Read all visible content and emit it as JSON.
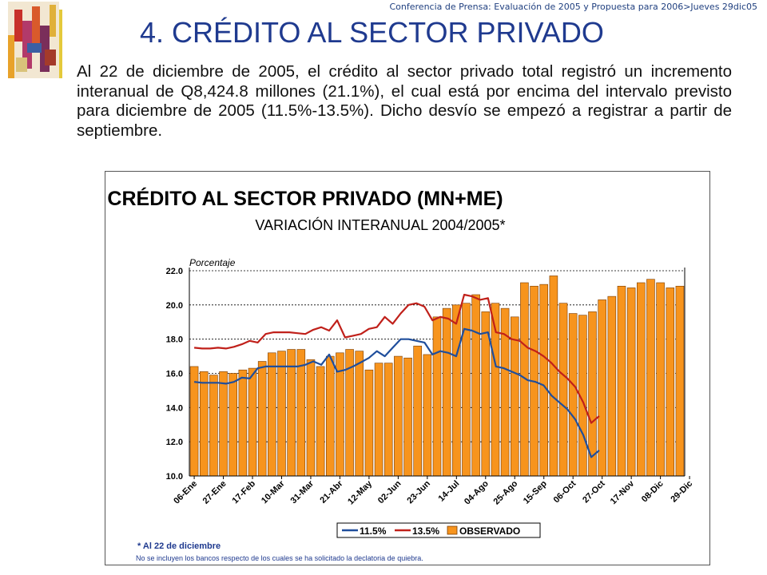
{
  "header": {
    "presentation_note": "Conferencia de Prensa: Evaluación de 2005 y Propuesta para 2006>Jueves 29dic05"
  },
  "slide": {
    "title": "4. CRÉDITO AL SECTOR PRIVADO",
    "body": "Al 22 de diciembre de 2005, el crédito al sector privado total registró un incremento interanual de Q8,424.8 millones (21.1%), el cual está por encima del intervalo previsto para diciembre de 2005 (11.5%-13.5%). Dicho desvío se empezó a registrar a partir de septiembre."
  },
  "colors": {
    "bar_fill": "#f7941d",
    "bar_stroke": "#7a3b00",
    "line_low": "#1f4e9c",
    "line_high": "#c0201a",
    "title_text": "#1f3a8f",
    "footnote_text": "#1f3a8f"
  },
  "chart_data": {
    "type": "bar",
    "title": "CRÉDITO AL SECTOR PRIVADO (MN+ME)",
    "subtitle": "VARIACIÓN INTERANUAL 2004/2005*",
    "ylabel": "Porcentaje",
    "ylim": [
      10.0,
      22.0
    ],
    "yticks": [
      "10.0",
      "12.0",
      "14.0",
      "16.0",
      "18.0",
      "20.0",
      "22.0"
    ],
    "grid": true,
    "xtick_labels": [
      "06-Ene",
      "27-Ene",
      "17-Feb",
      "10-Mar",
      "31-Mar",
      "21-Abr",
      "12-May",
      "02-Jun",
      "23-Jun",
      "14-Jul",
      "04-Ago",
      "25-Ago",
      "15-Sep",
      "06-Oct",
      "27-Oct",
      "17-Nov",
      "08-Dic",
      "29-Dic"
    ],
    "series": [
      {
        "name": "OBSERVADO",
        "kind": "bar",
        "values": [
          16.4,
          16.1,
          15.9,
          16.1,
          16.0,
          16.2,
          16.3,
          16.7,
          17.2,
          17.3,
          17.4,
          17.4,
          16.8,
          16.4,
          17.0,
          17.2,
          17.4,
          17.3,
          16.2,
          16.6,
          16.6,
          17.0,
          16.9,
          17.6,
          17.1,
          19.3,
          19.8,
          20.0,
          20.1,
          20.6,
          19.6,
          20.1,
          19.8,
          19.3,
          21.3,
          21.1,
          21.2,
          21.7,
          20.1,
          19.5,
          19.4,
          19.6,
          20.3,
          20.5,
          21.1,
          21.0,
          21.3,
          21.5,
          21.3,
          21.0,
          21.1
        ]
      },
      {
        "name": "11.5%",
        "kind": "line",
        "values": [
          15.5,
          15.45,
          15.45,
          15.45,
          15.4,
          15.5,
          15.75,
          15.7,
          16.3,
          16.4,
          16.4,
          16.4,
          16.4,
          16.4,
          16.5,
          16.7,
          16.5,
          17.1,
          16.1,
          16.2,
          16.4,
          16.65,
          16.9,
          17.3,
          17.0,
          17.5,
          18.0,
          18.0,
          17.9,
          17.8,
          17.1,
          17.3,
          17.2,
          17.0,
          18.6,
          18.5,
          18.3,
          18.4,
          16.4,
          16.3,
          16.1,
          15.9,
          15.6,
          15.5,
          15.3,
          14.7,
          14.3,
          13.9,
          13.3,
          12.4,
          11.1,
          11.5
        ]
      },
      {
        "name": "13.5%",
        "kind": "line",
        "values": [
          17.5,
          17.45,
          17.45,
          17.5,
          17.45,
          17.55,
          17.7,
          17.9,
          17.8,
          18.3,
          18.4,
          18.4,
          18.4,
          18.35,
          18.3,
          18.55,
          18.7,
          18.5,
          19.1,
          18.1,
          18.2,
          18.3,
          18.6,
          18.7,
          19.3,
          18.9,
          19.5,
          20.0,
          20.1,
          19.9,
          19.1,
          19.3,
          19.2,
          18.9,
          20.6,
          20.5,
          20.3,
          20.4,
          18.4,
          18.3,
          18.0,
          17.9,
          17.5,
          17.3,
          17.0,
          16.6,
          16.1,
          15.7,
          15.2,
          14.3,
          13.1,
          13.5
        ]
      }
    ],
    "legend": [
      "11.5%",
      "13.5%",
      "OBSERVADO"
    ],
    "legend_position": "bottom",
    "footnote": "* Al 22 de diciembre",
    "note": "No se incluyen los bancos respecto de los cuales se ha solicitado la declatoria de quiebra."
  }
}
